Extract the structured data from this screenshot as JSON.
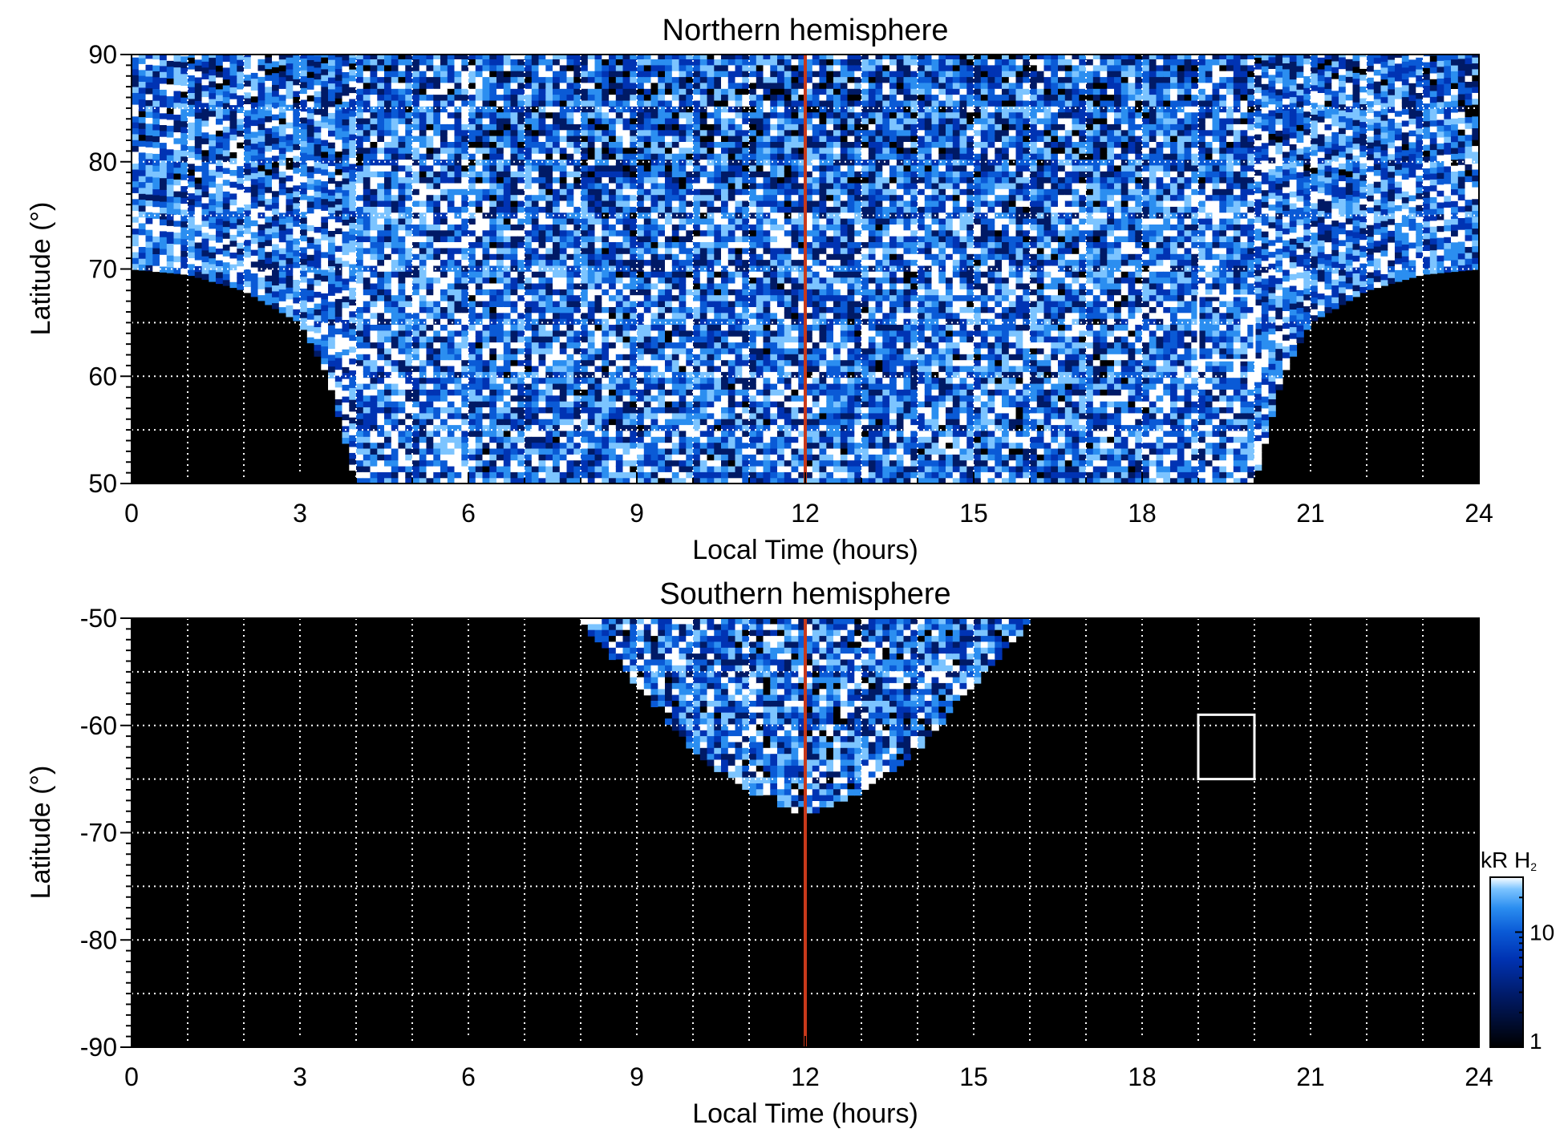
{
  "figure": {
    "colorbar": {
      "title": "kR H",
      "title_subscript": "2",
      "ticks": [
        {
          "value": 10,
          "label": "10"
        },
        {
          "value": 1,
          "label": "1"
        }
      ],
      "range": [
        1,
        30
      ],
      "scale": "log",
      "colormap": [
        "#000000",
        "#001a66",
        "#0033b3",
        "#0a5ad6",
        "#2b8ef0",
        "#7cc4ff",
        "#ffffff"
      ]
    },
    "meridian_line_color": "#c8391b",
    "box_color": "#ffffff",
    "grid_color": "#ffffff",
    "background_color": "#000000"
  },
  "chart_data": [
    {
      "type": "heatmap",
      "title": "Northern hemisphere",
      "xlabel": "Local Time (hours)",
      "ylabel": "Latitude (°)",
      "xlim": [
        0,
        24
      ],
      "ylim": [
        50,
        90
      ],
      "xticks": [
        0,
        3,
        6,
        9,
        12,
        15,
        18,
        21,
        24
      ],
      "xtick_labels": [
        "0",
        "3",
        "6",
        "9",
        "12",
        "15",
        "18",
        "21",
        "24"
      ],
      "yticks": [
        50,
        60,
        70,
        80,
        90
      ],
      "ytick_labels": [
        "50",
        "60",
        "70",
        "80",
        "90"
      ],
      "grid": true,
      "grid_x_step": 1,
      "grid_y_step": 5,
      "meridian_line": {
        "x": 12
      },
      "highlight_box": {
        "x": [
          19,
          20
        ],
        "y": [
          61.5,
          67.5
        ]
      },
      "coverage": {
        "description": "bowl",
        "equatorward_limit": [
          {
            "lt": 0,
            "lat": 70
          },
          {
            "lt": 1,
            "lat": 69.5
          },
          {
            "lt": 2,
            "lat": 68
          },
          {
            "lt": 3,
            "lat": 65
          },
          {
            "lt": 3.5,
            "lat": 60
          },
          {
            "lt": 4,
            "lat": 50
          },
          {
            "lt": 20,
            "lat": 50
          },
          {
            "lt": 20.5,
            "lat": 60
          },
          {
            "lt": 21,
            "lat": 65
          },
          {
            "lt": 22,
            "lat": 68
          },
          {
            "lt": 23,
            "lat": 69.5
          },
          {
            "lt": 24,
            "lat": 70
          }
        ]
      },
      "value_range_kR": [
        1,
        30
      ]
    },
    {
      "type": "heatmap",
      "title": "Southern hemisphere",
      "xlabel": "Local Time (hours)",
      "ylabel": "Latitude (°)",
      "xlim": [
        0,
        24
      ],
      "ylim": [
        -90,
        -50
      ],
      "xticks": [
        0,
        3,
        6,
        9,
        12,
        15,
        18,
        21,
        24
      ],
      "xtick_labels": [
        "0",
        "3",
        "6",
        "9",
        "12",
        "15",
        "18",
        "21",
        "24"
      ],
      "yticks": [
        -50,
        -60,
        -70,
        -80,
        -90
      ],
      "ytick_labels": [
        "-50",
        "-60",
        "-70",
        "-80",
        "-90"
      ],
      "grid": true,
      "grid_x_step": 1,
      "grid_y_step": 5,
      "meridian_line": {
        "x": 12
      },
      "highlight_box": {
        "x": [
          19,
          20
        ],
        "y": [
          -65,
          -59
        ]
      },
      "coverage": {
        "description": "cap",
        "lt_range": [
          8,
          16
        ],
        "poleward_limit": [
          {
            "lt": 8,
            "lat": -50
          },
          {
            "lt": 9,
            "lat": -56
          },
          {
            "lt": 10,
            "lat": -62
          },
          {
            "lt": 11,
            "lat": -66
          },
          {
            "lt": 12,
            "lat": -68
          },
          {
            "lt": 13,
            "lat": -66
          },
          {
            "lt": 14,
            "lat": -62
          },
          {
            "lt": 15,
            "lat": -56
          },
          {
            "lt": 16,
            "lat": -50
          }
        ]
      },
      "value_range_kR": [
        1,
        30
      ]
    }
  ]
}
